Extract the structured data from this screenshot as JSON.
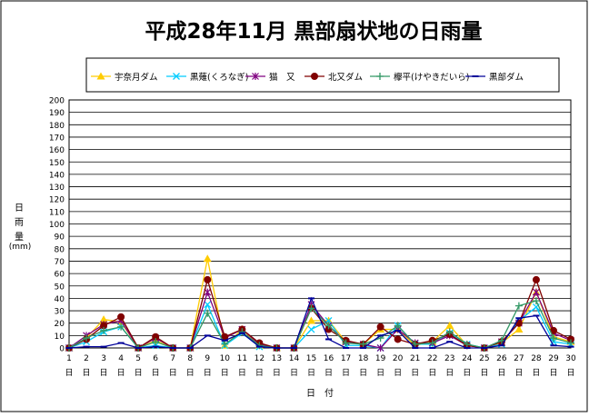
{
  "chart_data": {
    "type": "line",
    "title": "平成28年11月  黒部扇状地の日雨量",
    "ylabel": "日雨量",
    "yunit": "(mm)",
    "xlabel": "日　付",
    "ylim": [
      0,
      200
    ],
    "ytick_step": 10,
    "grid": true,
    "legend_position": "top",
    "x": [
      1,
      2,
      3,
      4,
      5,
      6,
      7,
      8,
      9,
      10,
      11,
      12,
      13,
      14,
      15,
      16,
      17,
      18,
      19,
      20,
      21,
      22,
      23,
      24,
      25,
      26,
      27,
      28,
      29,
      30
    ],
    "x_suffix": "日",
    "series": [
      {
        "name": "宇奈月ダム",
        "color": "#FFCC00",
        "marker": "triangle",
        "values": [
          0,
          8,
          23,
          21,
          0,
          6,
          0,
          0,
          72,
          2,
          15,
          2,
          0,
          0,
          22,
          22,
          5,
          3,
          15,
          15,
          2,
          5,
          18,
          2,
          0,
          4,
          15,
          45,
          9,
          5
        ]
      },
      {
        "name": "黒薙(くろなぎ)",
        "color": "#00CCFF",
        "marker": "x",
        "values": [
          0,
          5,
          13,
          17,
          0,
          2,
          0,
          0,
          35,
          2,
          12,
          1,
          0,
          0,
          15,
          22,
          2,
          2,
          0,
          18,
          3,
          3,
          12,
          3,
          0,
          3,
          22,
          33,
          5,
          3
        ]
      },
      {
        "name": "猫　又",
        "color": "#800080",
        "marker": "star",
        "values": [
          0,
          10,
          19,
          22,
          0,
          8,
          0,
          0,
          45,
          8,
          15,
          3,
          0,
          0,
          35,
          18,
          5,
          3,
          0,
          15,
          4,
          4,
          10,
          2,
          0,
          5,
          20,
          45,
          12,
          6
        ]
      },
      {
        "name": "北又ダム",
        "color": "#800000",
        "marker": "circle",
        "values": [
          0,
          7,
          18,
          25,
          0,
          9,
          0,
          0,
          55,
          9,
          15,
          4,
          0,
          0,
          32,
          15,
          6,
          3,
          17,
          7,
          3,
          6,
          11,
          2,
          0,
          5,
          20,
          55,
          14,
          7
        ]
      },
      {
        "name": "欅平(けやきだいら)",
        "color": "#339966",
        "marker": "plus",
        "values": [
          0,
          8,
          14,
          17,
          0,
          5,
          0,
          0,
          28,
          3,
          13,
          2,
          0,
          0,
          32,
          18,
          4,
          3,
          8,
          18,
          3,
          4,
          13,
          3,
          0,
          6,
          34,
          38,
          8,
          4
        ]
      },
      {
        "name": "黒部ダム",
        "color": "#000099",
        "marker": "dash",
        "values": [
          0,
          1,
          1,
          4,
          0,
          1,
          0,
          0,
          10,
          6,
          12,
          1,
          0,
          0,
          40,
          7,
          0,
          0,
          10,
          14,
          0,
          0,
          5,
          0,
          0,
          2,
          24,
          26,
          2,
          1
        ]
      }
    ]
  }
}
